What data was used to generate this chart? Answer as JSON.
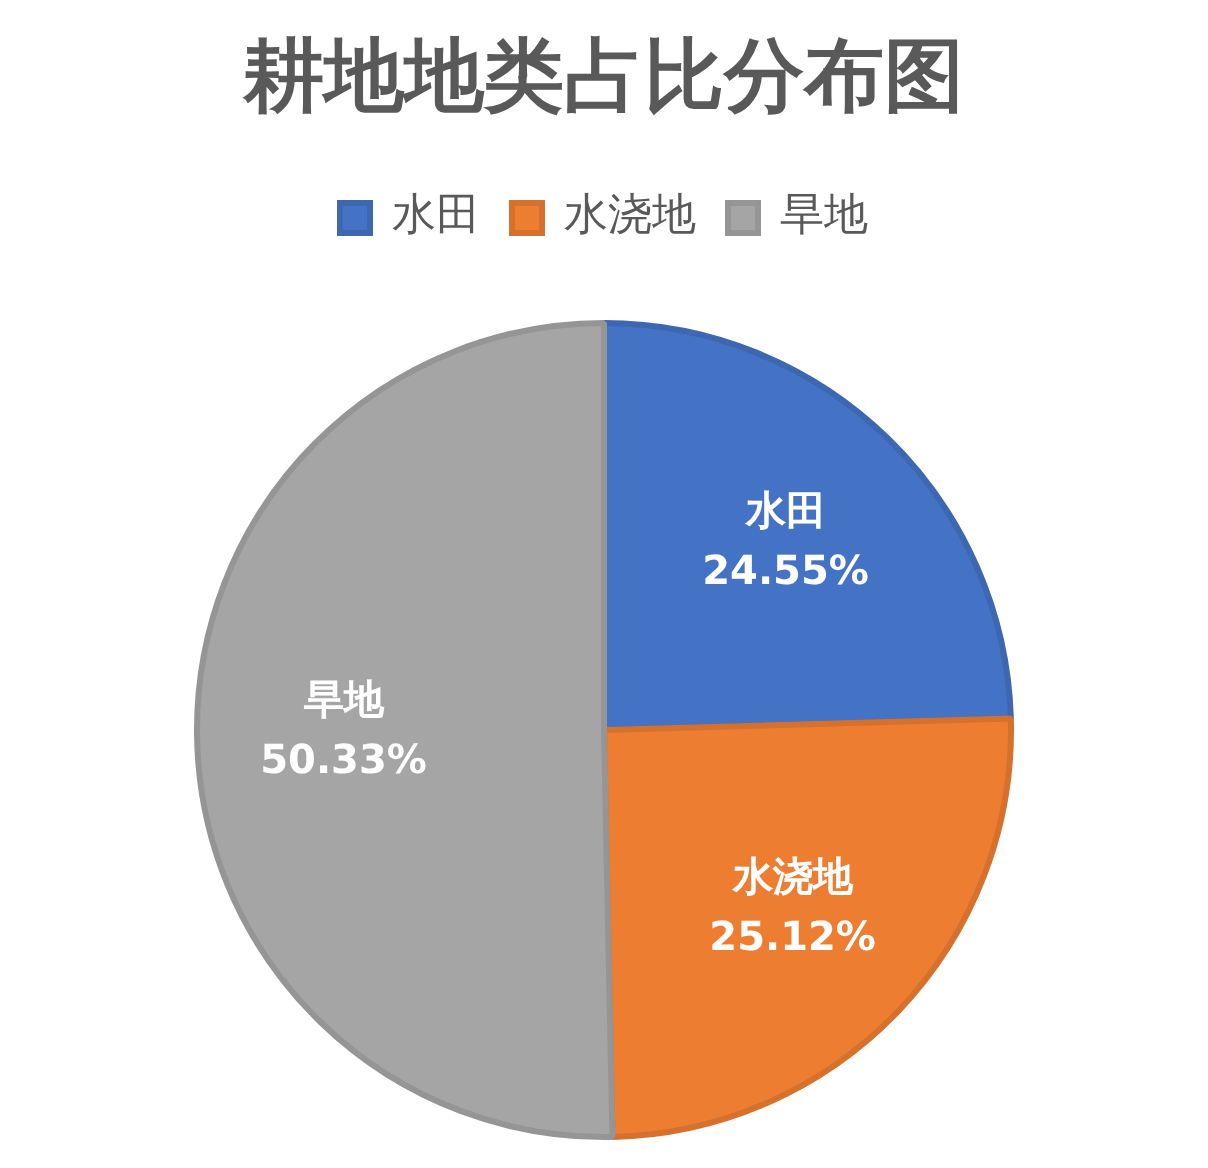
{
  "chart_data": {
    "type": "pie",
    "title": "耕地地类占比分布图",
    "categories": [
      "水田",
      "水浇地",
      "旱地"
    ],
    "values": [
      24.55,
      25.12,
      50.33
    ],
    "colors": [
      "#4472c4",
      "#ed7d31",
      "#a5a5a5"
    ],
    "value_labels": [
      "24.55%",
      "25.12%",
      "50.33%"
    ],
    "legend": "top"
  }
}
